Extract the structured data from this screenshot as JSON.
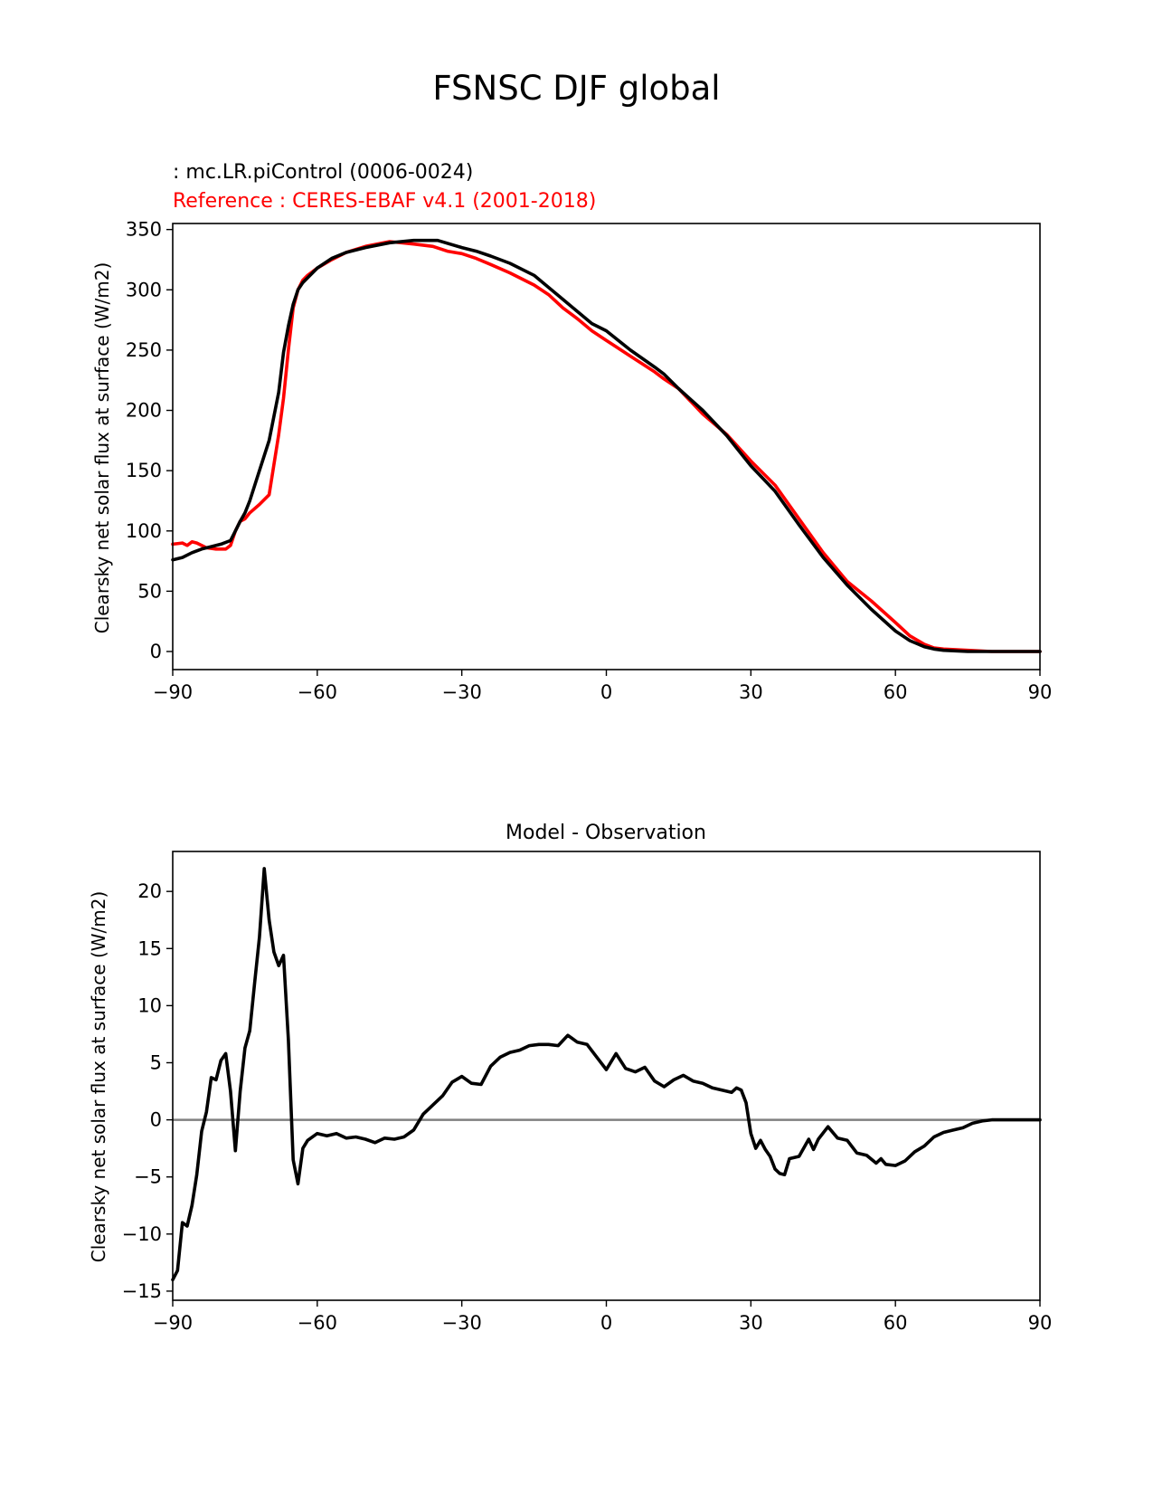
{
  "figure": {
    "suptitle": "FSNSC DJF global"
  },
  "colors": {
    "test": "#000000",
    "reference": "#ff0000",
    "zero_line": "#808080",
    "axes": "#000000"
  },
  "chart_data": [
    {
      "type": "line",
      "test_label": " : mc.LR.piControl (0006-0024)",
      "reference_label": "Reference : CERES-EBAF v4.1 (2001-2018)",
      "xlabel": "",
      "ylabel": "Clearsky net solar flux at surface (W/m2)",
      "xlim": [
        -90,
        90
      ],
      "ylim": [
        -15,
        355
      ],
      "xticks": [
        -90,
        -60,
        -30,
        0,
        30,
        60,
        90
      ],
      "xtick_labels": [
        "−90",
        "−60",
        "−30",
        "0",
        "30",
        "60",
        "90"
      ],
      "yticks": [
        0,
        50,
        100,
        150,
        200,
        250,
        300,
        350
      ],
      "ytick_labels": [
        "0",
        "50",
        "100",
        "150",
        "200",
        "250",
        "300",
        "350"
      ],
      "grid": false,
      "series": [
        {
          "role": "reference",
          "color": "#ff0000",
          "x": [
            -90,
            -88,
            -87,
            -86,
            -85,
            -83,
            -81,
            -79,
            -78,
            -77,
            -76,
            -75,
            -74,
            -72,
            -70,
            -69,
            -68,
            -67,
            -66,
            -65,
            -64,
            -63,
            -62,
            -60,
            -57,
            -54,
            -50,
            -45,
            -40,
            -36,
            -33,
            -30,
            -27,
            -24,
            -20,
            -15,
            -12,
            -9,
            -6,
            -3,
            0,
            5,
            10,
            12,
            15,
            20,
            25,
            30,
            35,
            40,
            45,
            50,
            55,
            60,
            63,
            66,
            68,
            70,
            75,
            80,
            85,
            90
          ],
          "y": [
            89,
            90,
            88,
            91,
            90,
            86,
            85,
            85,
            88,
            100,
            108,
            110,
            115,
            122,
            130,
            155,
            180,
            210,
            250,
            285,
            300,
            308,
            312,
            318,
            325,
            331,
            336,
            340,
            338,
            336,
            332,
            330,
            326,
            321,
            314,
            304,
            296,
            285,
            276,
            266,
            258,
            245,
            232,
            226,
            218,
            197,
            180,
            158,
            138,
            110,
            82,
            58,
            42,
            24,
            13,
            6,
            3,
            2,
            1,
            0,
            0,
            0
          ]
        },
        {
          "role": "test",
          "color": "#000000",
          "x": [
            -90,
            -88,
            -86,
            -84,
            -82,
            -80,
            -78,
            -77,
            -76,
            -75,
            -74,
            -72,
            -70,
            -68,
            -67,
            -66,
            -65,
            -64,
            -63,
            -62,
            -60,
            -57,
            -54,
            -50,
            -45,
            -40,
            -35,
            -30,
            -27,
            -24,
            -20,
            -15,
            -12,
            -9,
            -6,
            -3,
            0,
            5,
            10,
            12,
            15,
            20,
            25,
            30,
            35,
            40,
            45,
            50,
            55,
            60,
            63,
            66,
            68,
            70,
            75,
            80,
            85,
            90
          ],
          "y": [
            76,
            78,
            82,
            85,
            87,
            89,
            92,
            100,
            108,
            115,
            125,
            150,
            175,
            215,
            248,
            270,
            288,
            300,
            306,
            310,
            318,
            326,
            331,
            335,
            339,
            341,
            341,
            335,
            332,
            328,
            322,
            312,
            302,
            292,
            282,
            272,
            266,
            250,
            236,
            230,
            218,
            200,
            179,
            154,
            133,
            105,
            78,
            55,
            35,
            17,
            9,
            4,
            2,
            1,
            0,
            0,
            0,
            0
          ]
        }
      ]
    },
    {
      "type": "line",
      "title": "Model - Observation",
      "xlabel": "",
      "ylabel": "Clearsky net solar flux at surface (W/m2)",
      "xlim": [
        -90,
        90
      ],
      "ylim": [
        -15.8,
        23.5
      ],
      "xticks": [
        -90,
        -60,
        -30,
        0,
        30,
        60,
        90
      ],
      "xtick_labels": [
        "−90",
        "−60",
        "−30",
        "0",
        "30",
        "60",
        "90"
      ],
      "yticks": [
        -15,
        -10,
        -5,
        0,
        5,
        10,
        15,
        20
      ],
      "ytick_labels": [
        "−15",
        "−10",
        "−5",
        "0",
        "5",
        "10",
        "15",
        "20"
      ],
      "grid": false,
      "zero_line": 0,
      "series": [
        {
          "role": "difference",
          "color": "#000000",
          "x": [
            -90,
            -89,
            -88,
            -87,
            -86,
            -85,
            -84,
            -83,
            -82,
            -81,
            -80,
            -79,
            -78,
            -77,
            -76,
            -75,
            -74,
            -73,
            -72,
            -71,
            -70,
            -69,
            -68,
            -67,
            -66,
            -65,
            -64,
            -63,
            -62,
            -60,
            -58,
            -56,
            -54,
            -52,
            -50,
            -48,
            -46,
            -44,
            -42,
            -40,
            -38,
            -36,
            -34,
            -32,
            -30,
            -28,
            -26,
            -24,
            -22,
            -20,
            -18,
            -16,
            -14,
            -12,
            -10,
            -8,
            -6,
            -4,
            -2,
            0,
            2,
            4,
            6,
            8,
            10,
            12,
            14,
            16,
            18,
            20,
            22,
            24,
            26,
            27,
            28,
            29,
            30,
            31,
            32,
            33,
            34,
            35,
            36,
            37,
            38,
            40,
            42,
            43,
            44,
            46,
            48,
            50,
            52,
            54,
            56,
            57,
            58,
            60,
            62,
            64,
            66,
            68,
            70,
            72,
            74,
            76,
            78,
            80,
            85,
            90
          ],
          "y": [
            -14,
            -13.2,
            -9,
            -9.3,
            -7.5,
            -4.8,
            -1,
            0.7,
            3.7,
            3.5,
            5.2,
            5.8,
            2.5,
            -2.7,
            2.5,
            6.3,
            7.8,
            12,
            16,
            22,
            17.5,
            14.7,
            13.5,
            14.4,
            7,
            -3.5,
            -5.6,
            -2.5,
            -1.8,
            -1.2,
            -1.4,
            -1.2,
            -1.6,
            -1.5,
            -1.7,
            -2,
            -1.6,
            -1.7,
            -1.5,
            -0.9,
            0.5,
            1.3,
            2.1,
            3.3,
            3.8,
            3.2,
            3.1,
            4.7,
            5.5,
            5.9,
            6.1,
            6.5,
            6.6,
            6.6,
            6.5,
            7.4,
            6.8,
            6.6,
            5.5,
            4.4,
            5.8,
            4.5,
            4.2,
            4.6,
            3.4,
            2.9,
            3.5,
            3.9,
            3.4,
            3.2,
            2.8,
            2.6,
            2.4,
            2.8,
            2.6,
            1.5,
            -1.2,
            -2.5,
            -1.8,
            -2.6,
            -3.2,
            -4.3,
            -4.7,
            -4.8,
            -3.4,
            -3.2,
            -1.7,
            -2.6,
            -1.7,
            -0.6,
            -1.6,
            -1.8,
            -2.9,
            -3.1,
            -3.8,
            -3.4,
            -3.9,
            -4,
            -3.6,
            -2.8,
            -2.3,
            -1.5,
            -1.1,
            -0.9,
            -0.7,
            -0.3,
            -0.1,
            0,
            0,
            0
          ]
        }
      ]
    }
  ]
}
